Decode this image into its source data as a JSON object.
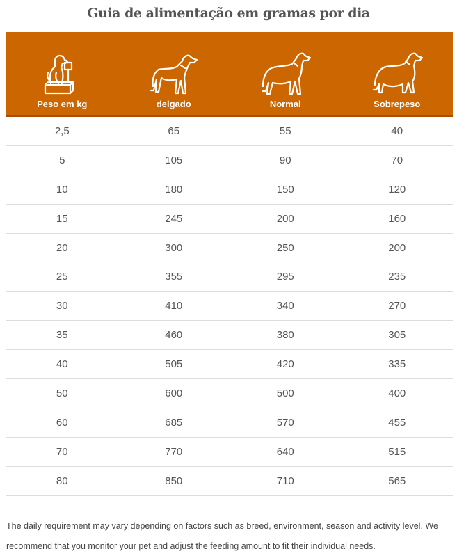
{
  "title": "Guia de alimentação em gramas por dia",
  "colors": {
    "header_bg": "#cc6600",
    "header_border": "#a84f00"
  },
  "columns": [
    {
      "label": "Peso em kg",
      "icon": "dog-on-scale-icon"
    },
    {
      "label": "delgado",
      "icon": "thin-dog-icon"
    },
    {
      "label": "Normal",
      "icon": "normal-dog-icon"
    },
    {
      "label": "Sobrepeso",
      "icon": "overweight-dog-icon"
    }
  ],
  "rows": [
    [
      "2,5",
      "65",
      "55",
      "40"
    ],
    [
      "5",
      "105",
      "90",
      "70"
    ],
    [
      "10",
      "180",
      "150",
      "120"
    ],
    [
      "15",
      "245",
      "200",
      "160"
    ],
    [
      "20",
      "300",
      "250",
      "200"
    ],
    [
      "25",
      "355",
      "295",
      "235"
    ],
    [
      "30",
      "410",
      "340",
      "270"
    ],
    [
      "35",
      "460",
      "380",
      "305"
    ],
    [
      "40",
      "505",
      "420",
      "335"
    ],
    [
      "50",
      "600",
      "500",
      "400"
    ],
    [
      "60",
      "685",
      "570",
      "455"
    ],
    [
      "70",
      "770",
      "640",
      "515"
    ],
    [
      "80",
      "850",
      "710",
      "565"
    ]
  ],
  "note": "The daily requirement may vary depending on factors such as breed, environment, season and activity level. We recommend that you monitor your pet and adjust the feeding amount to fit their individual needs."
}
